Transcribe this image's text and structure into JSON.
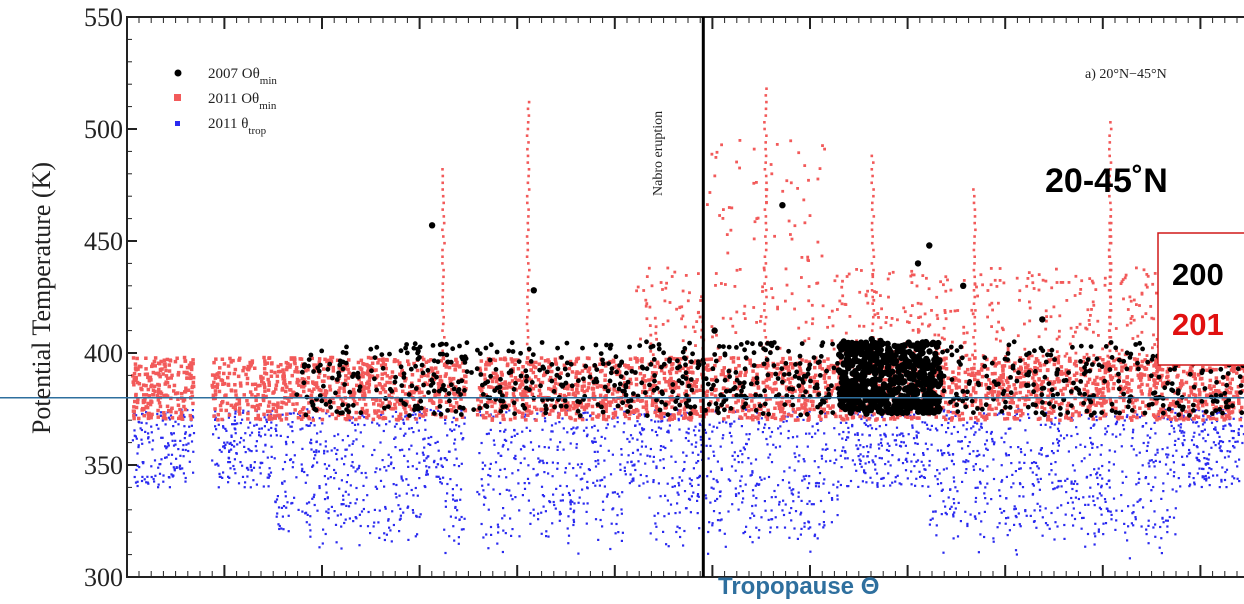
{
  "chart_data": {
    "type": "scatter",
    "title": "",
    "xlabel": "",
    "ylabel": "Potential Temperature (K)",
    "ylim": [
      300,
      550
    ],
    "y_ticks": [
      "300",
      "350",
      "400",
      "450",
      "500",
      "550"
    ],
    "x_ticks_labeled": false,
    "grid": false,
    "legend_position": "top-left",
    "legend": [
      {
        "label": "2007 Oθ",
        "sub": "min",
        "color": "#000000"
      },
      {
        "label": "2011 Oθ",
        "sub": "min",
        "color": "#f25a5a"
      },
      {
        "label": "2011 θ",
        "sub": "trop",
        "color": "#2a2af0"
      }
    ],
    "panel_label": "a) 20°N−45°N",
    "event_label": "Nabro eruption",
    "event_x_fraction": 0.51,
    "region_label": "20-45˚N",
    "box_lines": [
      {
        "text": "200",
        "color": "#000000"
      },
      {
        "text": "201",
        "color": "#e01010"
      }
    ],
    "reference_line": {
      "label": "Tropopause Θ",
      "y": 380,
      "color": "#2e6f9e"
    },
    "series": [
      {
        "name": "2007 Oθmin",
        "color": "#000000",
        "typical_range": [
          372,
          405
        ],
        "outliers": [
          [
            0.27,
            457
          ],
          [
            0.36,
            428
          ],
          [
            0.52,
            410
          ],
          [
            0.57,
            404
          ],
          [
            0.58,
            466
          ],
          [
            0.7,
            440
          ],
          [
            0.71,
            448
          ],
          [
            0.74,
            430
          ],
          [
            0.81,
            415
          ]
        ]
      },
      {
        "name": "2011 Oθmin",
        "color": "#f25a5a",
        "typical_range": [
          370,
          398
        ],
        "spikes": [
          [
            0.28,
            482
          ],
          [
            0.355,
            513
          ],
          [
            0.565,
            520
          ],
          [
            0.66,
            488
          ],
          [
            0.75,
            475
          ],
          [
            0.87,
            461
          ],
          [
            0.87,
            505
          ]
        ]
      },
      {
        "name": "2011 θtrop",
        "color": "#2a2af0",
        "typical_range": [
          308,
          375
        ]
      }
    ]
  }
}
